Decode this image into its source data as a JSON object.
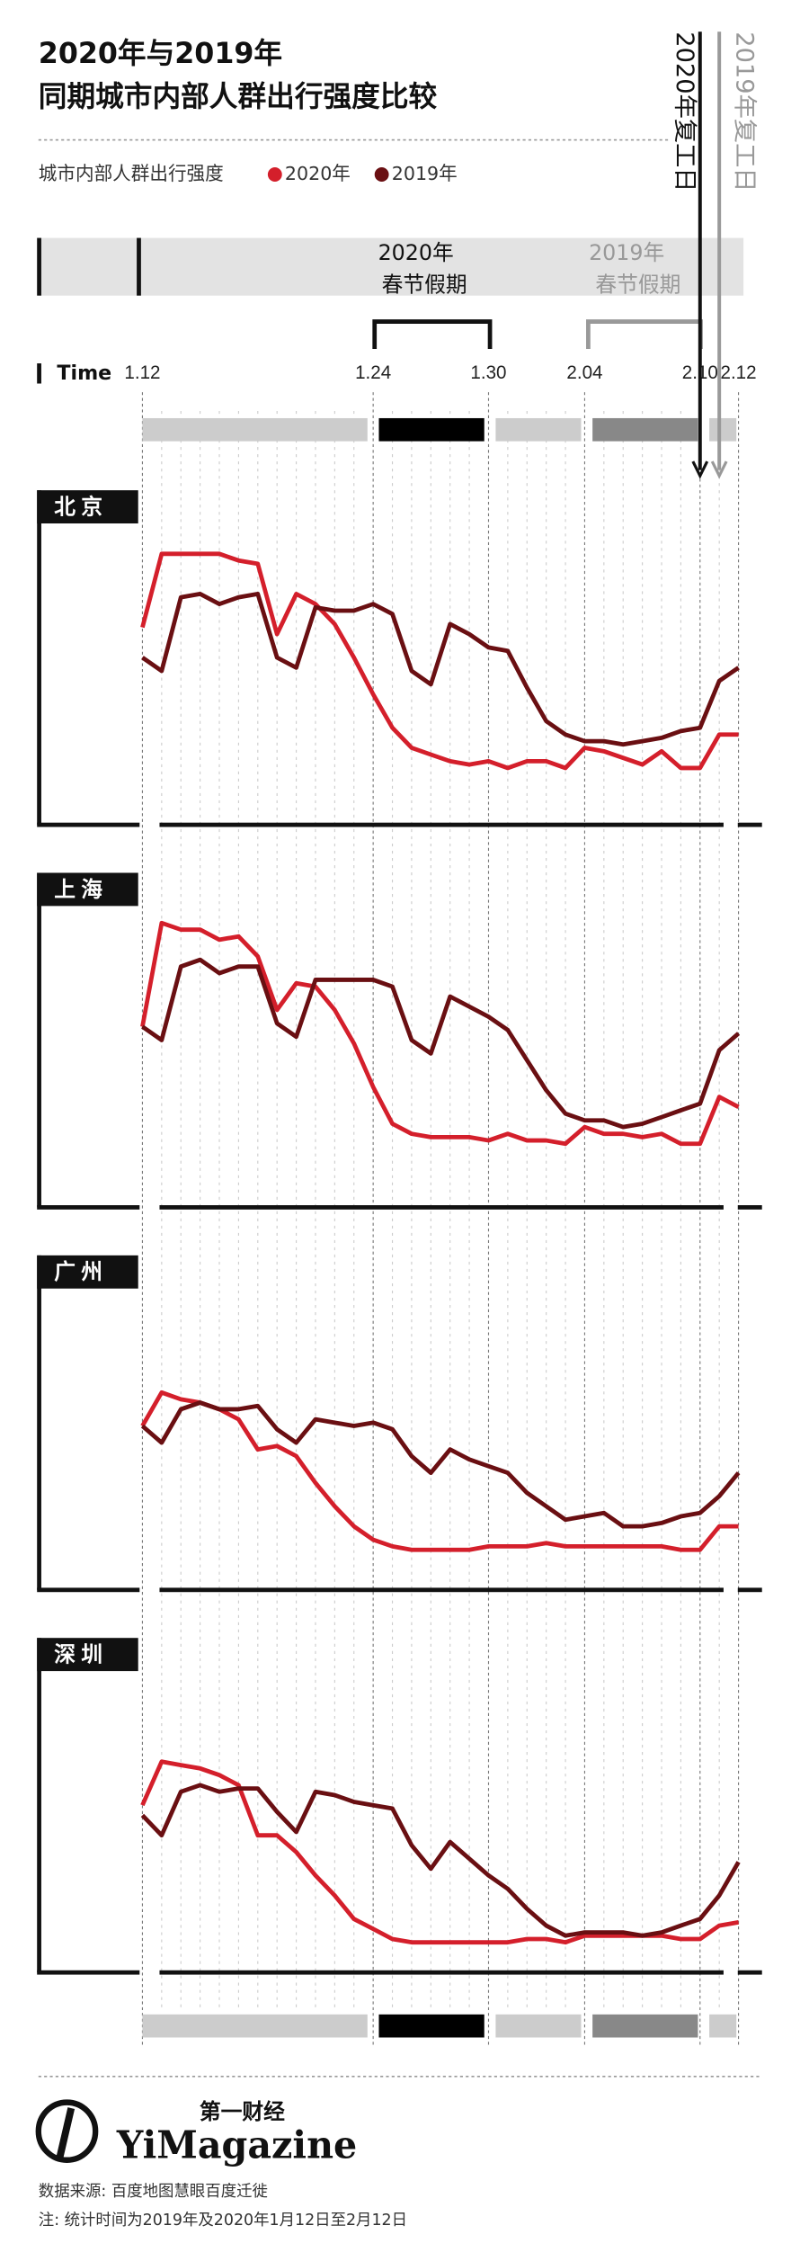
{
  "header": {
    "title": [
      "2020年与2019年",
      "同期城市内部人群出行强度比较"
    ],
    "legend_label": "城市内部人群出行强度"
  },
  "markers": {
    "return_2020": "2020年复工日",
    "return_2019": "2019年复工日",
    "holiday_2020": [
      "2020年",
      "春节假期"
    ],
    "holiday_2019": [
      "2019年",
      "春节假期"
    ]
  },
  "x_axis": {
    "label": "Time",
    "categories": [
      "1.12",
      null,
      null,
      null,
      null,
      null,
      null,
      null,
      null,
      null,
      null,
      null,
      "1.24",
      null,
      null,
      null,
      null,
      null,
      "1.30",
      null,
      null,
      null,
      null,
      "2.04",
      null,
      null,
      null,
      null,
      null,
      "2.10",
      null,
      "2.12"
    ]
  },
  "chart_data": [
    {
      "type": "line",
      "title": "北京",
      "ylim": [
        0,
        100
      ],
      "series": [
        {
          "name": "2020年",
          "color": "#d41f2b",
          "values": [
            59,
            81,
            81,
            81,
            81,
            79,
            78,
            57,
            69,
            66,
            60,
            50,
            39,
            29,
            23,
            21,
            19,
            18,
            19,
            17,
            19,
            19,
            17,
            23,
            22,
            20,
            18,
            22,
            17,
            17,
            27,
            27
          ]
        },
        {
          "name": "2019年",
          "color": "#6a0f12",
          "values": [
            50,
            46,
            68,
            69,
            66,
            68,
            69,
            50,
            47,
            65,
            64,
            64,
            66,
            63,
            46,
            42,
            60,
            57,
            53,
            52,
            41,
            31,
            27,
            25,
            25,
            24,
            25,
            26,
            28,
            29,
            43,
            47
          ]
        }
      ]
    },
    {
      "type": "line",
      "title": "上海",
      "ylim": [
        0,
        100
      ],
      "series": [
        {
          "name": "2020年",
          "color": "#d41f2b",
          "values": [
            54,
            85,
            83,
            83,
            80,
            81,
            75,
            59,
            67,
            66,
            59,
            49,
            36,
            25,
            22,
            21,
            21,
            21,
            20,
            22,
            20,
            20,
            19,
            24,
            22,
            22,
            21,
            22,
            19,
            19,
            33,
            30
          ]
        },
        {
          "name": "2019年",
          "color": "#6a0f12",
          "values": [
            54,
            50,
            72,
            74,
            70,
            72,
            72,
            55,
            51,
            68,
            68,
            68,
            68,
            66,
            50,
            46,
            63,
            60,
            57,
            53,
            44,
            35,
            28,
            26,
            26,
            24,
            25,
            27,
            29,
            31,
            47,
            52
          ]
        }
      ]
    },
    {
      "type": "line",
      "title": "广州",
      "ylim": [
        0,
        100
      ],
      "series": [
        {
          "name": "2020年",
          "color": "#d41f2b",
          "values": [
            49,
            59,
            57,
            56,
            54,
            51,
            42,
            43,
            40,
            32,
            25,
            19,
            15,
            13,
            12,
            12,
            12,
            12,
            13,
            13,
            13,
            14,
            13,
            13,
            13,
            13,
            13,
            13,
            12,
            12,
            19,
            19
          ]
        },
        {
          "name": "2019年",
          "color": "#6a0f12",
          "values": [
            49,
            44,
            54,
            56,
            54,
            54,
            55,
            48,
            44,
            51,
            50,
            49,
            50,
            48,
            40,
            35,
            42,
            39,
            37,
            35,
            29,
            25,
            21,
            22,
            23,
            19,
            19,
            20,
            22,
            23,
            28,
            35
          ]
        }
      ]
    },
    {
      "type": "line",
      "title": "深圳",
      "ylim": [
        0,
        100
      ],
      "series": [
        {
          "name": "2020年",
          "color": "#d41f2b",
          "values": [
            50,
            63,
            62,
            61,
            59,
            56,
            41,
            41,
            36,
            29,
            23,
            16,
            13,
            10,
            9,
            9,
            9,
            9,
            9,
            9,
            10,
            10,
            9,
            11,
            11,
            11,
            11,
            11,
            10,
            10,
            14,
            15
          ]
        },
        {
          "name": "2019年",
          "color": "#6a0f12",
          "values": [
            47,
            41,
            54,
            56,
            54,
            55,
            55,
            48,
            42,
            54,
            53,
            51,
            50,
            49,
            38,
            31,
            39,
            34,
            29,
            25,
            19,
            14,
            11,
            12,
            12,
            12,
            11,
            12,
            14,
            16,
            23,
            33
          ]
        }
      ]
    }
  ],
  "footer": {
    "brand_cn": "第一财经",
    "brand": "YiMagazine",
    "source": "数据来源: 百度地图慧眼百度迁徙",
    "note": "注: 统计时间为2019年及2020年1月12日至2月12日"
  }
}
